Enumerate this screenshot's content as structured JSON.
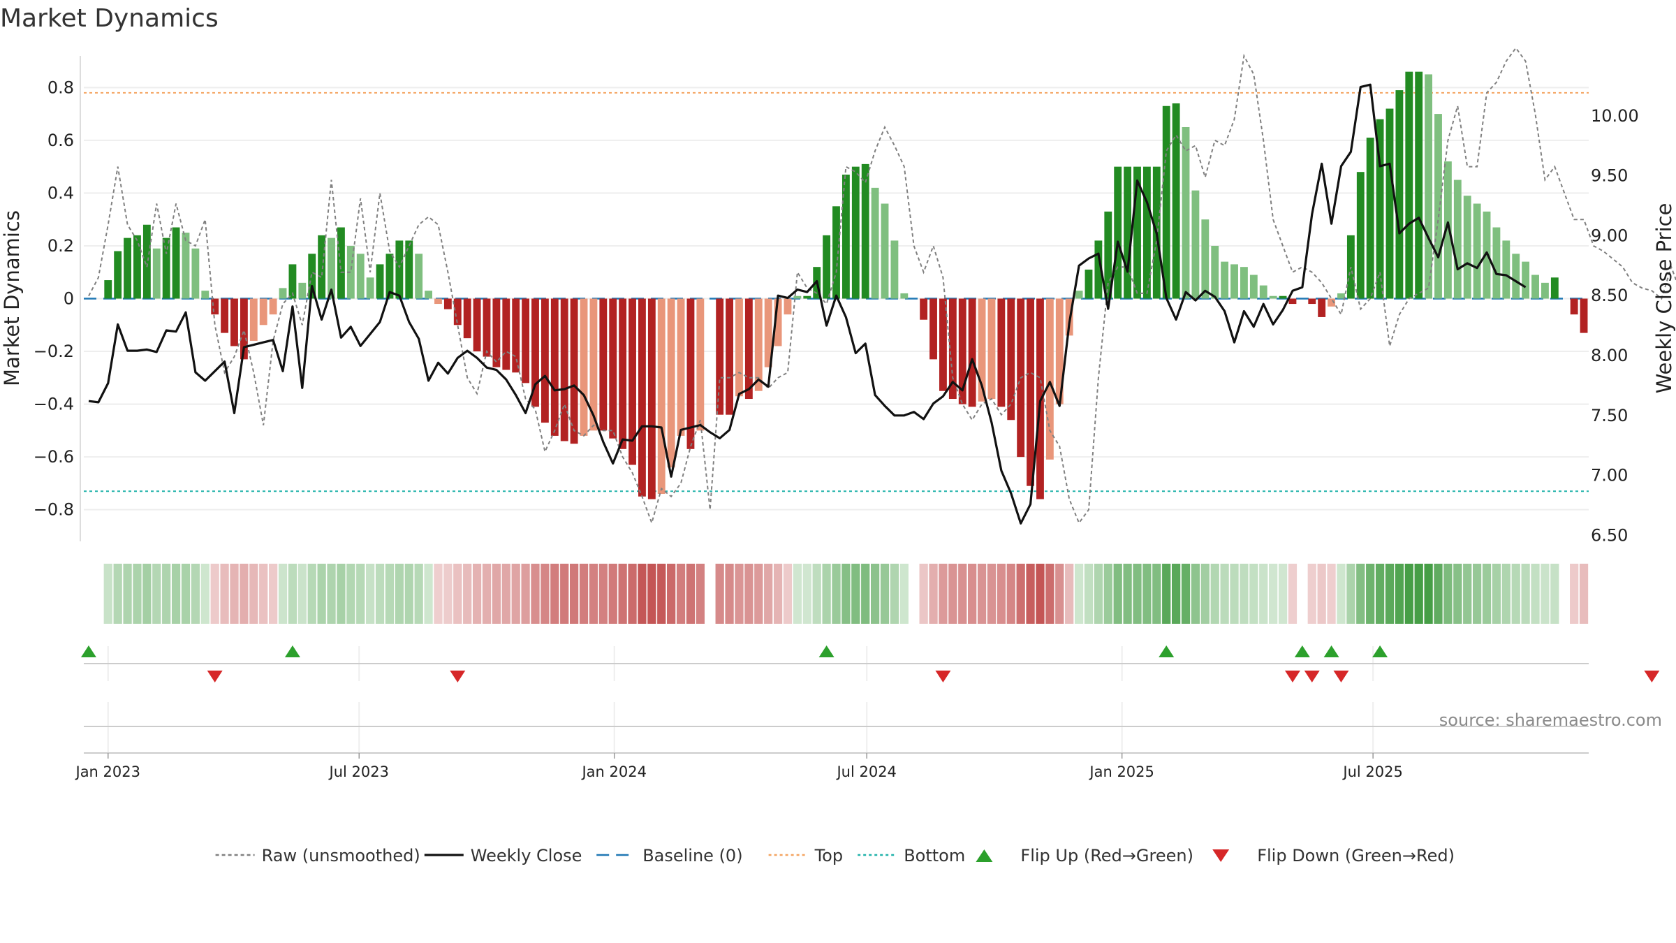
{
  "chart_data": {
    "type": "bar",
    "title": "Market Dynamics",
    "ylabel_left": "Market Dynamics",
    "ylabel_right": "Weekly Close Price",
    "ylim_left": [
      -0.92,
      0.92
    ],
    "ylim_right": [
      6.45,
      10.5
    ],
    "yticks_left": [
      0.8,
      0.6,
      0.4,
      0.2,
      0,
      -0.2,
      -0.4,
      -0.6,
      -0.8
    ],
    "yticks_left_labels": [
      "0.8",
      "0.6",
      "0.4",
      "0.2",
      "0",
      "−0.2",
      "−0.4",
      "−0.6",
      "−0.8"
    ],
    "yticks_right": [
      10.0,
      9.5,
      9.0,
      8.5,
      8.0,
      7.5,
      7.0,
      6.5
    ],
    "yticks_right_labels": [
      "10.00",
      "9.50",
      "9.00",
      "8.50",
      "8.00",
      "7.50",
      "7.00",
      "6.50"
    ],
    "xticks": [
      {
        "label": "Jan 2023",
        "date": "2023-01-01"
      },
      {
        "label": "Jul 2023",
        "date": "2023-07-01"
      },
      {
        "label": "Jan 2024",
        "date": "2024-01-01"
      },
      {
        "label": "Jul 2024",
        "date": "2024-07-01"
      },
      {
        "label": "Jan 2025",
        "date": "2025-01-01"
      },
      {
        "label": "Jul 2025",
        "date": "2025-07-01"
      }
    ],
    "start_date": "2022-12-18",
    "top_level": 0.78,
    "bottom_level": -0.73,
    "baseline": 0,
    "grid": true,
    "legend_position": "bottom",
    "source": "source: sharemaestro.com",
    "colors": {
      "strong_green": "#228b22",
      "light_green": "#7fbf7f",
      "strong_red": "#b22222",
      "light_red": "#e9967a",
      "close_line": "#111111",
      "raw_line": "#808080",
      "baseline": "#1f77b4",
      "top": "#f4a460",
      "bottom": "#20b2aa",
      "flip_up": "#2ca02c",
      "flip_down": "#d62728"
    },
    "series": [
      {
        "name": "Raw (unsmoothed)",
        "values": [
          0.01,
          0.08,
          0.28,
          0.5,
          0.28,
          0.22,
          0.12,
          0.36,
          0.17,
          0.36,
          0.22,
          0.2,
          0.3,
          -0.1,
          -0.28,
          -0.22,
          -0.12,
          -0.28,
          -0.48,
          -0.16,
          -0.02,
          0.02,
          -0.1,
          0.1,
          0.08,
          0.45,
          0.1,
          0.1,
          0.38,
          0.1,
          0.4,
          0.18,
          0.12,
          0.2,
          0.28,
          0.31,
          0.28,
          0.1,
          -0.1,
          -0.3,
          -0.36,
          -0.2,
          -0.24,
          -0.2,
          -0.22,
          -0.38,
          -0.42,
          -0.58,
          -0.5,
          -0.4,
          -0.5,
          -0.52,
          -0.48,
          -0.5,
          -0.5,
          -0.6,
          -0.66,
          -0.75,
          -0.85,
          -0.72,
          -0.75,
          -0.7,
          -0.56,
          -0.46,
          -0.8,
          -0.3,
          -0.3,
          -0.28,
          -0.3,
          -0.3,
          -0.34,
          -0.3,
          -0.28,
          0.1,
          0.04,
          0.02,
          -0.02,
          0.1,
          0.5,
          0.48,
          0.44,
          0.56,
          0.65,
          0.58,
          0.5,
          0.2,
          0.1,
          0.2,
          0.08,
          -0.3,
          -0.4,
          -0.46,
          -0.4,
          -0.38,
          -0.44,
          -0.4,
          -0.3,
          -0.28,
          -0.3,
          -0.5,
          -0.56,
          -0.76,
          -0.85,
          -0.8,
          -0.3,
          0.06,
          0.12,
          0.12,
          0.02,
          0.02,
          0.22,
          0.56,
          0.62,
          0.56,
          0.58,
          0.46,
          0.6,
          0.58,
          0.68,
          0.92,
          0.85,
          0.6,
          0.3,
          0.2,
          0.1,
          0.12,
          0.1,
          0.06,
          0.0,
          -0.06,
          0.12,
          -0.04,
          0.0,
          0.1,
          -0.18,
          -0.06,
          0.0,
          0.02,
          0.04,
          0.3,
          0.6,
          0.73,
          0.5,
          0.5,
          0.78,
          0.82,
          0.9,
          0.95,
          0.9,
          0.7,
          0.45,
          0.5,
          0.4,
          0.3,
          0.3,
          0.2,
          0.18,
          0.15,
          0.12,
          0.06,
          0.04,
          0.03,
          0.0,
          0.12,
          0.02,
          -0.2,
          -0.2,
          -0.28
        ]
      },
      {
        "name": "Weekly Close",
        "values": [
          7.62,
          7.61,
          7.77,
          8.26,
          8.04,
          8.04,
          8.05,
          8.03,
          8.21,
          8.2,
          8.36,
          7.86,
          7.79,
          7.87,
          7.95,
          7.52,
          8.07,
          8.09,
          8.11,
          8.13,
          7.87,
          8.41,
          7.73,
          8.58,
          8.3,
          8.55,
          8.15,
          8.24,
          8.08,
          8.18,
          8.28,
          8.53,
          8.5,
          8.28,
          8.14,
          7.79,
          7.94,
          7.85,
          7.98,
          8.04,
          7.98,
          7.9,
          7.88,
          7.8,
          7.67,
          7.52,
          7.76,
          7.83,
          7.71,
          7.72,
          7.75,
          7.67,
          7.5,
          7.28,
          7.1,
          7.3,
          7.29,
          7.41,
          7.41,
          7.4,
          6.99,
          7.38,
          7.4,
          7.42,
          7.36,
          7.31,
          7.38,
          7.68,
          7.72,
          7.8,
          7.74,
          8.5,
          8.48,
          8.55,
          8.53,
          8.62,
          8.25,
          8.5,
          8.32,
          8.02,
          8.1,
          7.67,
          7.58,
          7.5,
          7.5,
          7.53,
          7.47,
          7.6,
          7.66,
          7.78,
          7.71,
          7.97,
          7.75,
          7.44,
          7.04,
          6.85,
          6.6,
          6.76,
          7.62,
          7.78,
          7.58,
          8.27,
          8.75,
          8.81,
          8.85,
          8.39,
          8.95,
          8.7,
          9.46,
          9.28,
          9.02,
          8.48,
          8.3,
          8.53,
          8.46,
          8.54,
          8.49,
          8.37,
          8.11,
          8.37,
          8.24,
          8.43,
          8.26,
          8.38,
          8.54,
          8.57,
          9.18,
          9.6,
          9.1,
          9.58,
          9.7,
          10.24,
          10.26,
          9.58,
          9.6,
          9.02,
          9.1,
          9.15,
          8.98,
          8.82,
          9.11,
          8.72,
          8.77,
          8.73,
          8.86,
          8.68,
          8.67,
          8.62,
          8.57
        ]
      },
      {
        "name": "Market Dynamics",
        "values": [
          0.0,
          0.0,
          0.07,
          0.18,
          0.23,
          0.24,
          0.28,
          0.19,
          0.23,
          0.27,
          0.25,
          0.19,
          0.03,
          -0.06,
          -0.13,
          -0.18,
          -0.23,
          -0.16,
          -0.1,
          -0.06,
          0.04,
          0.13,
          0.06,
          0.17,
          0.24,
          0.23,
          0.27,
          0.2,
          0.17,
          0.08,
          0.13,
          0.17,
          0.22,
          0.22,
          0.17,
          0.03,
          -0.02,
          -0.04,
          -0.1,
          -0.15,
          -0.2,
          -0.22,
          -0.26,
          -0.27,
          -0.28,
          -0.32,
          -0.41,
          -0.47,
          -0.52,
          -0.54,
          -0.55,
          -0.52,
          -0.5,
          -0.5,
          -0.53,
          -0.57,
          -0.63,
          -0.75,
          -0.76,
          -0.74,
          -0.64,
          -0.52,
          -0.57,
          -0.5,
          0.0,
          -0.44,
          -0.44,
          -0.37,
          -0.38,
          -0.35,
          -0.26,
          -0.18,
          -0.06,
          0.01,
          0.01,
          0.12,
          0.24,
          0.35,
          0.47,
          0.5,
          0.51,
          0.42,
          0.36,
          0.22,
          0.02,
          0.0,
          -0.08,
          -0.23,
          -0.35,
          -0.38,
          -0.4,
          -0.41,
          -0.39,
          -0.38,
          -0.41,
          -0.46,
          -0.6,
          -0.71,
          -0.76,
          -0.61,
          -0.4,
          -0.14,
          0.03,
          0.11,
          0.22,
          0.33,
          0.5,
          0.5,
          0.5,
          0.5,
          0.5,
          0.73,
          0.74,
          0.65,
          0.41,
          0.3,
          0.2,
          0.14,
          0.13,
          0.12,
          0.09,
          0.05,
          0.01,
          0.01,
          -0.02,
          0.0,
          -0.02,
          -0.07,
          -0.03,
          0.02,
          0.24,
          0.48,
          0.61,
          0.68,
          0.72,
          0.79,
          0.86,
          0.86,
          0.85,
          0.7,
          0.52,
          0.45,
          0.39,
          0.36,
          0.33,
          0.27,
          0.22,
          0.17,
          0.14,
          0.09,
          0.06,
          0.08,
          0.0,
          -0.06,
          -0.13
        ]
      }
    ],
    "flip_up_weeks": [
      0,
      21,
      76,
      111,
      125,
      128,
      133
    ],
    "flip_down_weeks": [
      13,
      38,
      88,
      124,
      126,
      129,
      161
    ],
    "legend": [
      {
        "label": "Raw (unsmoothed)",
        "kind": "dashed",
        "color": "#808080"
      },
      {
        "label": "Weekly Close",
        "kind": "solid",
        "color": "#111111"
      },
      {
        "label": "Baseline (0)",
        "kind": "longdash",
        "color": "#1f77b4"
      },
      {
        "label": "Top",
        "kind": "dotted",
        "color": "#f4a460"
      },
      {
        "label": "Bottom",
        "kind": "dotted",
        "color": "#20b2aa"
      },
      {
        "label": "Flip Up (Red→Green)",
        "kind": "triangle-up",
        "color": "#2ca02c"
      },
      {
        "label": "Flip Down (Green→Red)",
        "kind": "triangle-down",
        "color": "#d62728"
      }
    ]
  }
}
